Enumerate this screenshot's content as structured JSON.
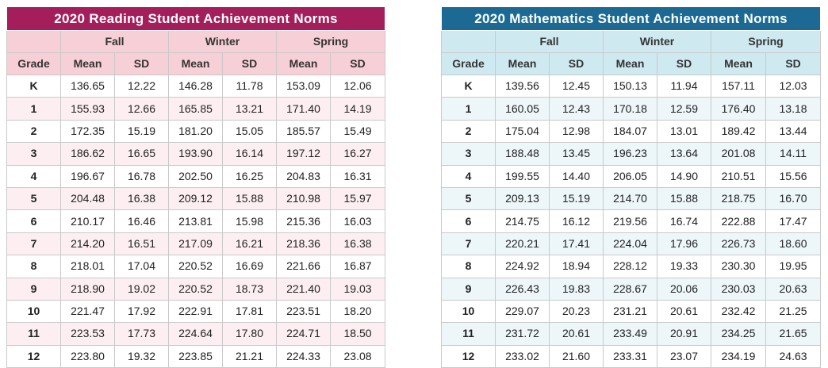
{
  "reading": {
    "title": "2020 Reading Student Achievement Norms",
    "seasons": [
      "Fall",
      "Winter",
      "Spring"
    ],
    "grade_header": "Grade",
    "mean_label": "Mean",
    "sd_label": "SD",
    "colors": {
      "title_bg": "#a31e5a",
      "header_bg": "#f7cfd6",
      "row_alt_bg": "#fdeff1",
      "row_bg": "#ffffff"
    },
    "rows": [
      [
        "K",
        "136.65",
        "12.22",
        "146.28",
        "11.78",
        "153.09",
        "12.06"
      ],
      [
        "1",
        "155.93",
        "12.66",
        "165.85",
        "13.21",
        "171.40",
        "14.19"
      ],
      [
        "2",
        "172.35",
        "15.19",
        "181.20",
        "15.05",
        "185.57",
        "15.49"
      ],
      [
        "3",
        "186.62",
        "16.65",
        "193.90",
        "16.14",
        "197.12",
        "16.27"
      ],
      [
        "4",
        "196.67",
        "16.78",
        "202.50",
        "16.25",
        "204.83",
        "16.31"
      ],
      [
        "5",
        "204.48",
        "16.38",
        "209.12",
        "15.88",
        "210.98",
        "15.97"
      ],
      [
        "6",
        "210.17",
        "16.46",
        "213.81",
        "15.98",
        "215.36",
        "16.03"
      ],
      [
        "7",
        "214.20",
        "16.51",
        "217.09",
        "16.21",
        "218.36",
        "16.38"
      ],
      [
        "8",
        "218.01",
        "17.04",
        "220.52",
        "16.69",
        "221.66",
        "16.87"
      ],
      [
        "9",
        "218.90",
        "19.02",
        "220.52",
        "18.73",
        "221.40",
        "19.03"
      ],
      [
        "10",
        "221.47",
        "17.92",
        "222.91",
        "17.81",
        "223.51",
        "18.20"
      ],
      [
        "11",
        "223.53",
        "17.73",
        "224.64",
        "17.80",
        "224.71",
        "18.50"
      ],
      [
        "12",
        "223.80",
        "19.32",
        "223.85",
        "21.21",
        "224.33",
        "23.08"
      ]
    ]
  },
  "math": {
    "title": "2020 Mathematics Student Achievement Norms",
    "seasons": [
      "Fall",
      "Winter",
      "Spring"
    ],
    "grade_header": "Grade",
    "mean_label": "Mean",
    "sd_label": "SD",
    "colors": {
      "title_bg": "#1c6a93",
      "header_bg": "#cfe9f1",
      "row_alt_bg": "#edf7fa",
      "row_bg": "#ffffff"
    },
    "rows": [
      [
        "K",
        "139.56",
        "12.45",
        "150.13",
        "11.94",
        "157.11",
        "12.03"
      ],
      [
        "1",
        "160.05",
        "12.43",
        "170.18",
        "12.59",
        "176.40",
        "13.18"
      ],
      [
        "2",
        "175.04",
        "12.98",
        "184.07",
        "13.01",
        "189.42",
        "13.44"
      ],
      [
        "3",
        "188.48",
        "13.45",
        "196.23",
        "13.64",
        "201.08",
        "14.11"
      ],
      [
        "4",
        "199.55",
        "14.40",
        "206.05",
        "14.90",
        "210.51",
        "15.56"
      ],
      [
        "5",
        "209.13",
        "15.19",
        "214.70",
        "15.88",
        "218.75",
        "16.70"
      ],
      [
        "6",
        "214.75",
        "16.12",
        "219.56",
        "16.74",
        "222.88",
        "17.47"
      ],
      [
        "7",
        "220.21",
        "17.41",
        "224.04",
        "17.96",
        "226.73",
        "18.60"
      ],
      [
        "8",
        "224.92",
        "18.94",
        "228.12",
        "19.33",
        "230.30",
        "19.95"
      ],
      [
        "9",
        "226.43",
        "19.83",
        "228.67",
        "20.06",
        "230.03",
        "20.63"
      ],
      [
        "10",
        "229.07",
        "20.23",
        "231.21",
        "20.61",
        "232.42",
        "21.25"
      ],
      [
        "11",
        "231.72",
        "20.61",
        "233.49",
        "20.91",
        "234.25",
        "21.65"
      ],
      [
        "12",
        "233.02",
        "21.60",
        "233.31",
        "23.07",
        "234.19",
        "24.63"
      ]
    ]
  }
}
